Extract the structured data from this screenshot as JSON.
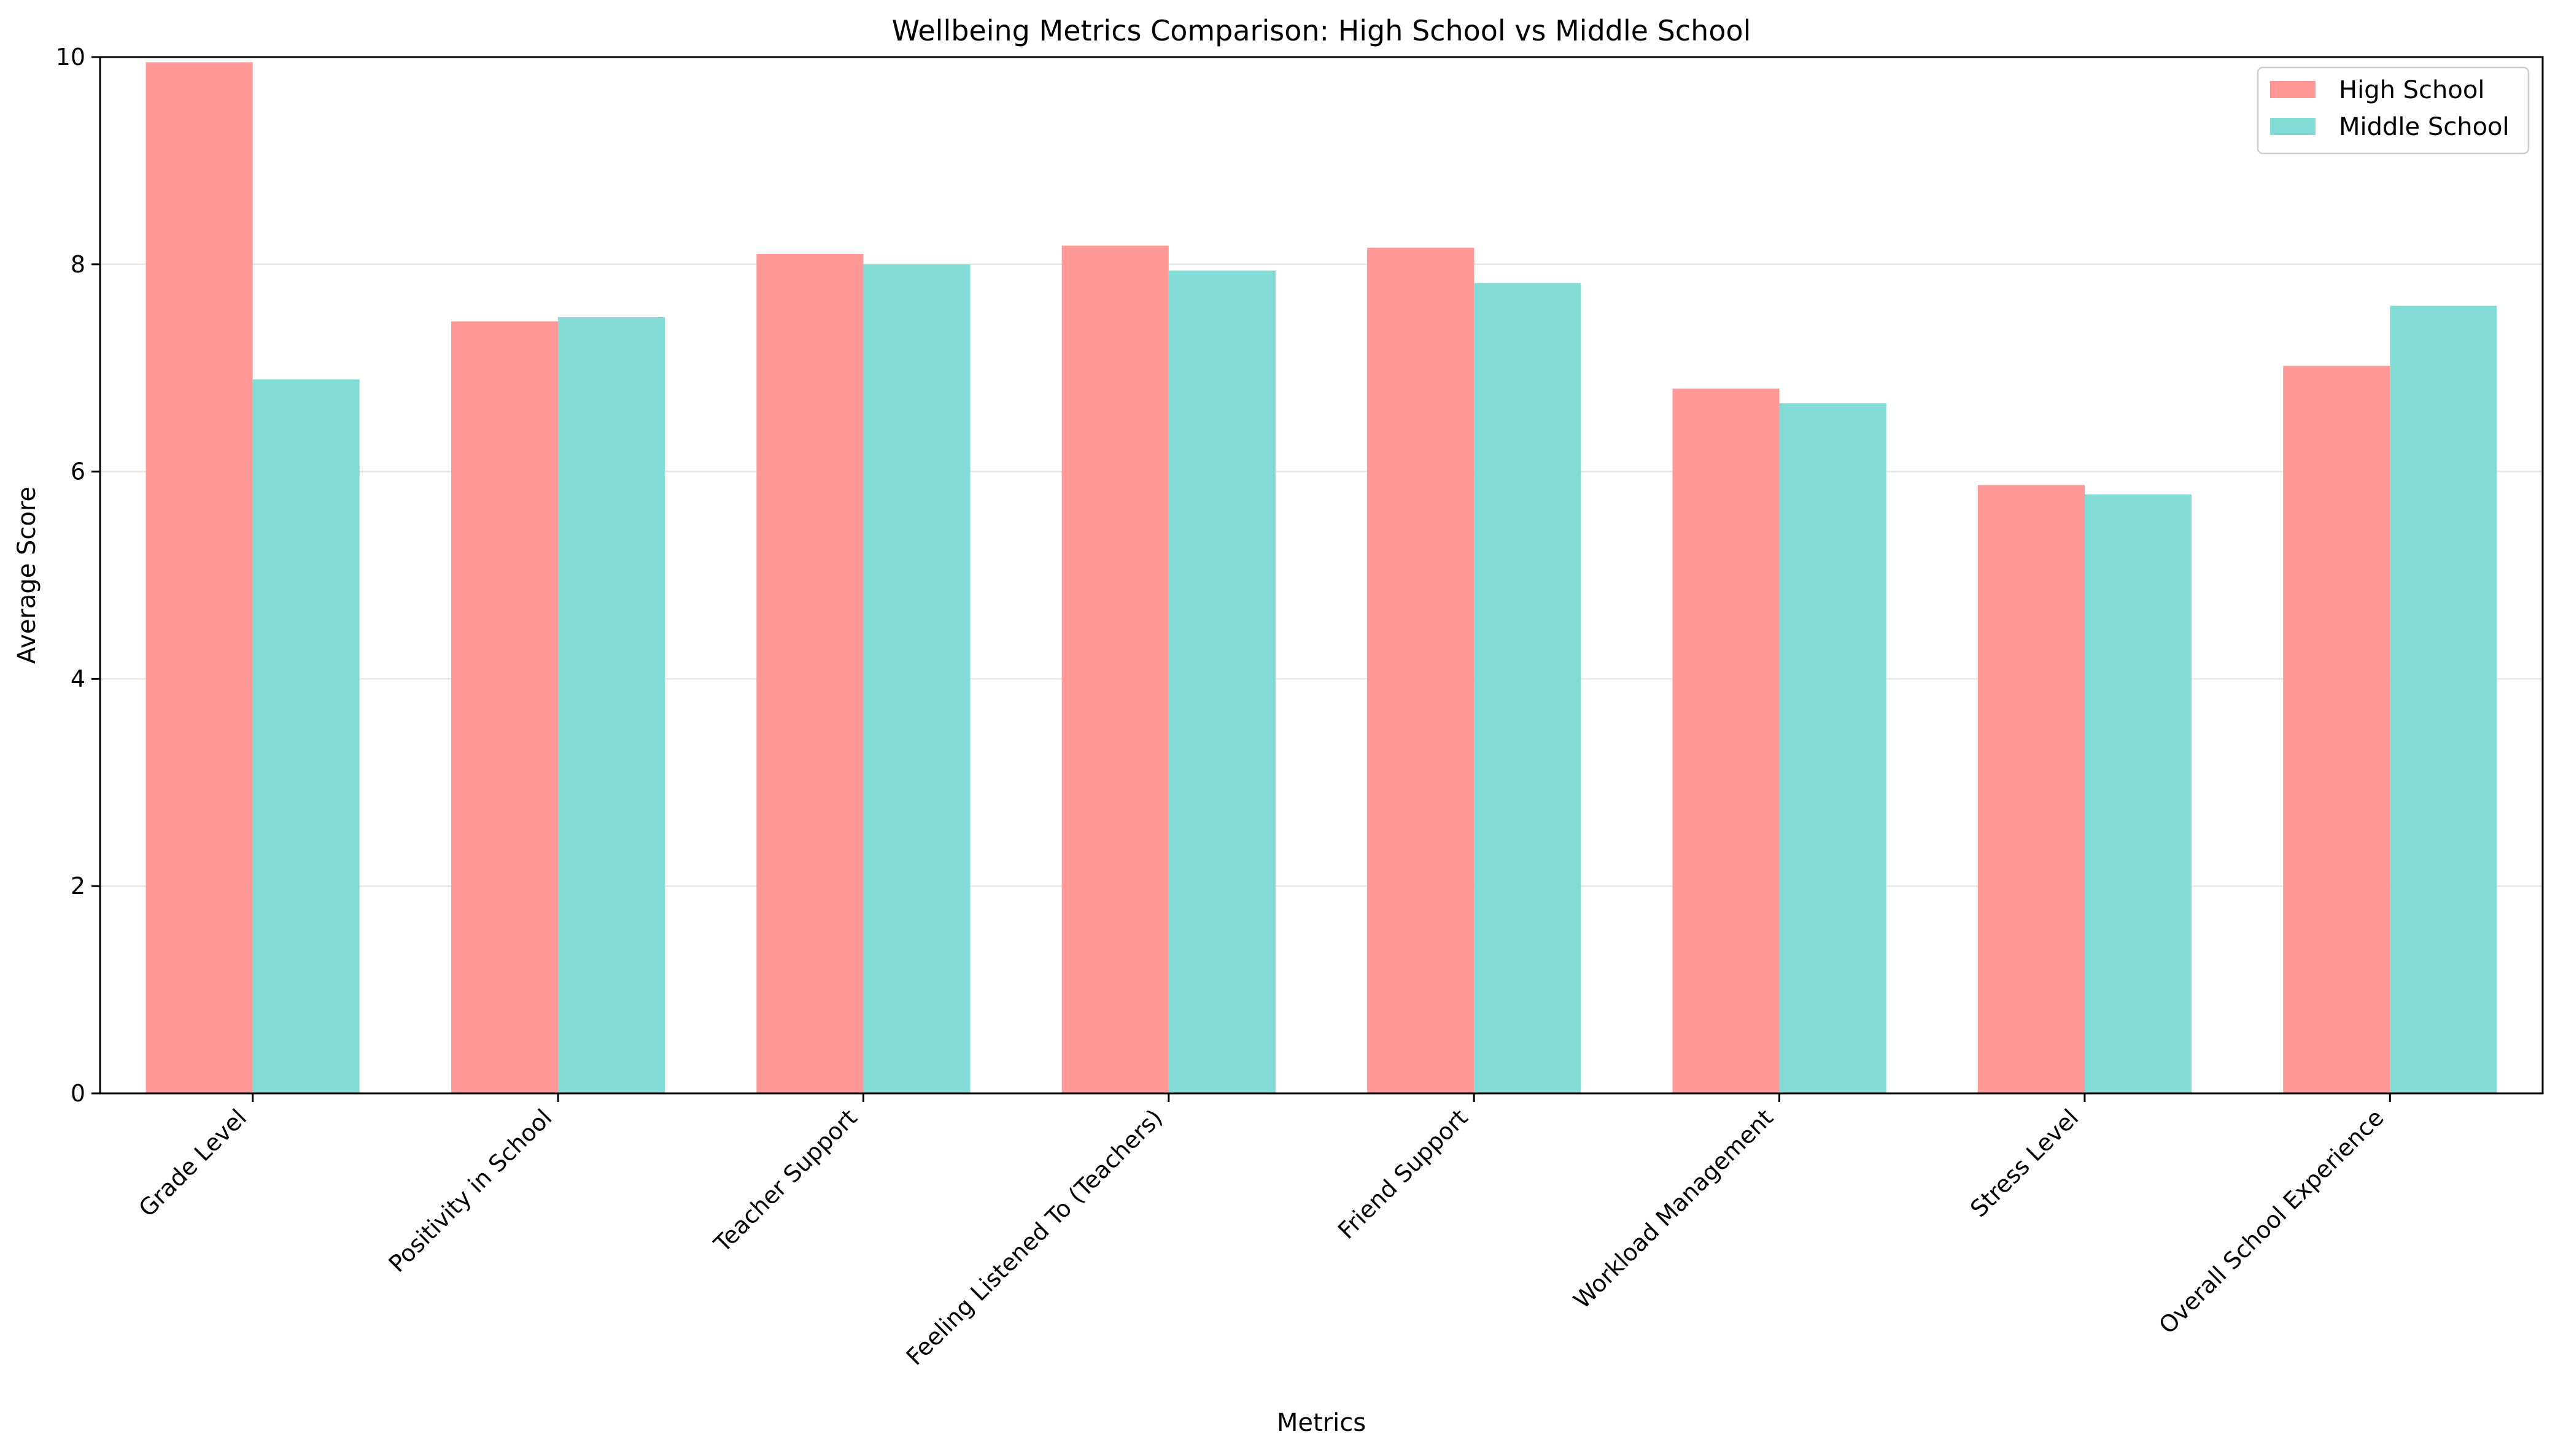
{
  "chart_data": {
    "type": "bar",
    "title": "Wellbeing Metrics Comparison: High School vs Middle School",
    "xlabel": "Metrics",
    "ylabel": "Average Score",
    "ylim": [
      0,
      10
    ],
    "yticks": [
      0,
      2,
      4,
      6,
      8,
      10
    ],
    "grid": "horizontal",
    "legend_position": "top-right",
    "categories": [
      "Grade Level",
      "Positivity in School",
      "Teacher Support",
      "Feeling Listened To (Teachers)",
      "Friend Support",
      "Workload Management",
      "Stress Level",
      "Overall School Experience"
    ],
    "series": [
      {
        "name": "High School",
        "color": "#ff9896",
        "values": [
          9.95,
          7.45,
          8.1,
          8.18,
          8.16,
          6.8,
          5.87,
          7.02
        ]
      },
      {
        "name": "Middle School",
        "color": "#83dbd5",
        "values": [
          6.89,
          7.49,
          8.0,
          7.94,
          7.82,
          6.66,
          5.78,
          7.6
        ]
      }
    ]
  }
}
